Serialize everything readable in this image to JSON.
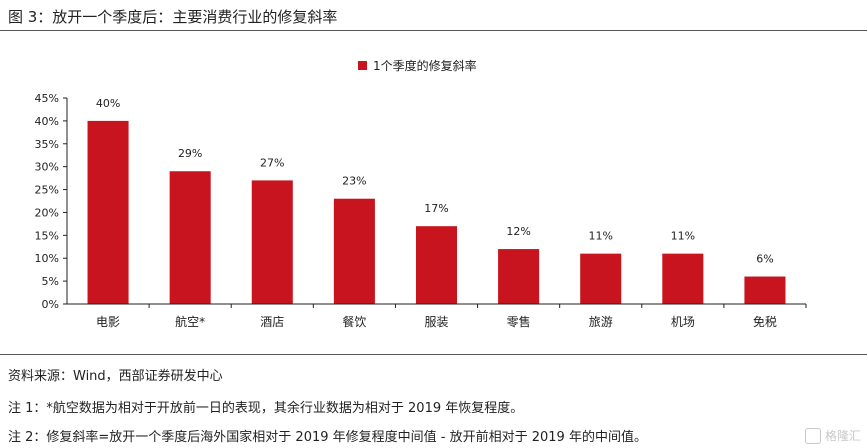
{
  "title": "图 3：放开一个季度后：主要消费行业的修复斜率",
  "chart_data": {
    "type": "bar",
    "title": "",
    "legend": "1个季度的修复斜率",
    "legend_position": "top-center",
    "categories": [
      "电影",
      "航空*",
      "酒店",
      "餐饮",
      "服装",
      "零售",
      "旅游",
      "机场",
      "免税"
    ],
    "series": [
      {
        "name": "1个季度的修复斜率",
        "values": [
          40,
          29,
          27,
          23,
          17,
          12,
          11,
          11,
          6
        ]
      }
    ],
    "data_labels": [
      "40%",
      "29%",
      "27%",
      "23%",
      "17%",
      "12%",
      "11%",
      "11%",
      "6%"
    ],
    "y_ticks": [
      "0%",
      "5%",
      "10%",
      "15%",
      "20%",
      "25%",
      "30%",
      "35%",
      "40%",
      "45%"
    ],
    "ylim": [
      0,
      45
    ],
    "xlabel": "",
    "ylabel": "",
    "grid": false,
    "bar_color": "#c8141e"
  },
  "source": "资料来源：Wind，西部证券研发中心",
  "notes": [
    "注 1：*航空数据为相对于开放前一日的表现，其余行业数据为相对于 2019 年恢复程度。",
    "注 2：修复斜率=放开一个季度后海外国家相对于 2019 年修复程度中间值 - 放开前相对于 2019 年的中间值。"
  ],
  "watermark": "格隆汇"
}
